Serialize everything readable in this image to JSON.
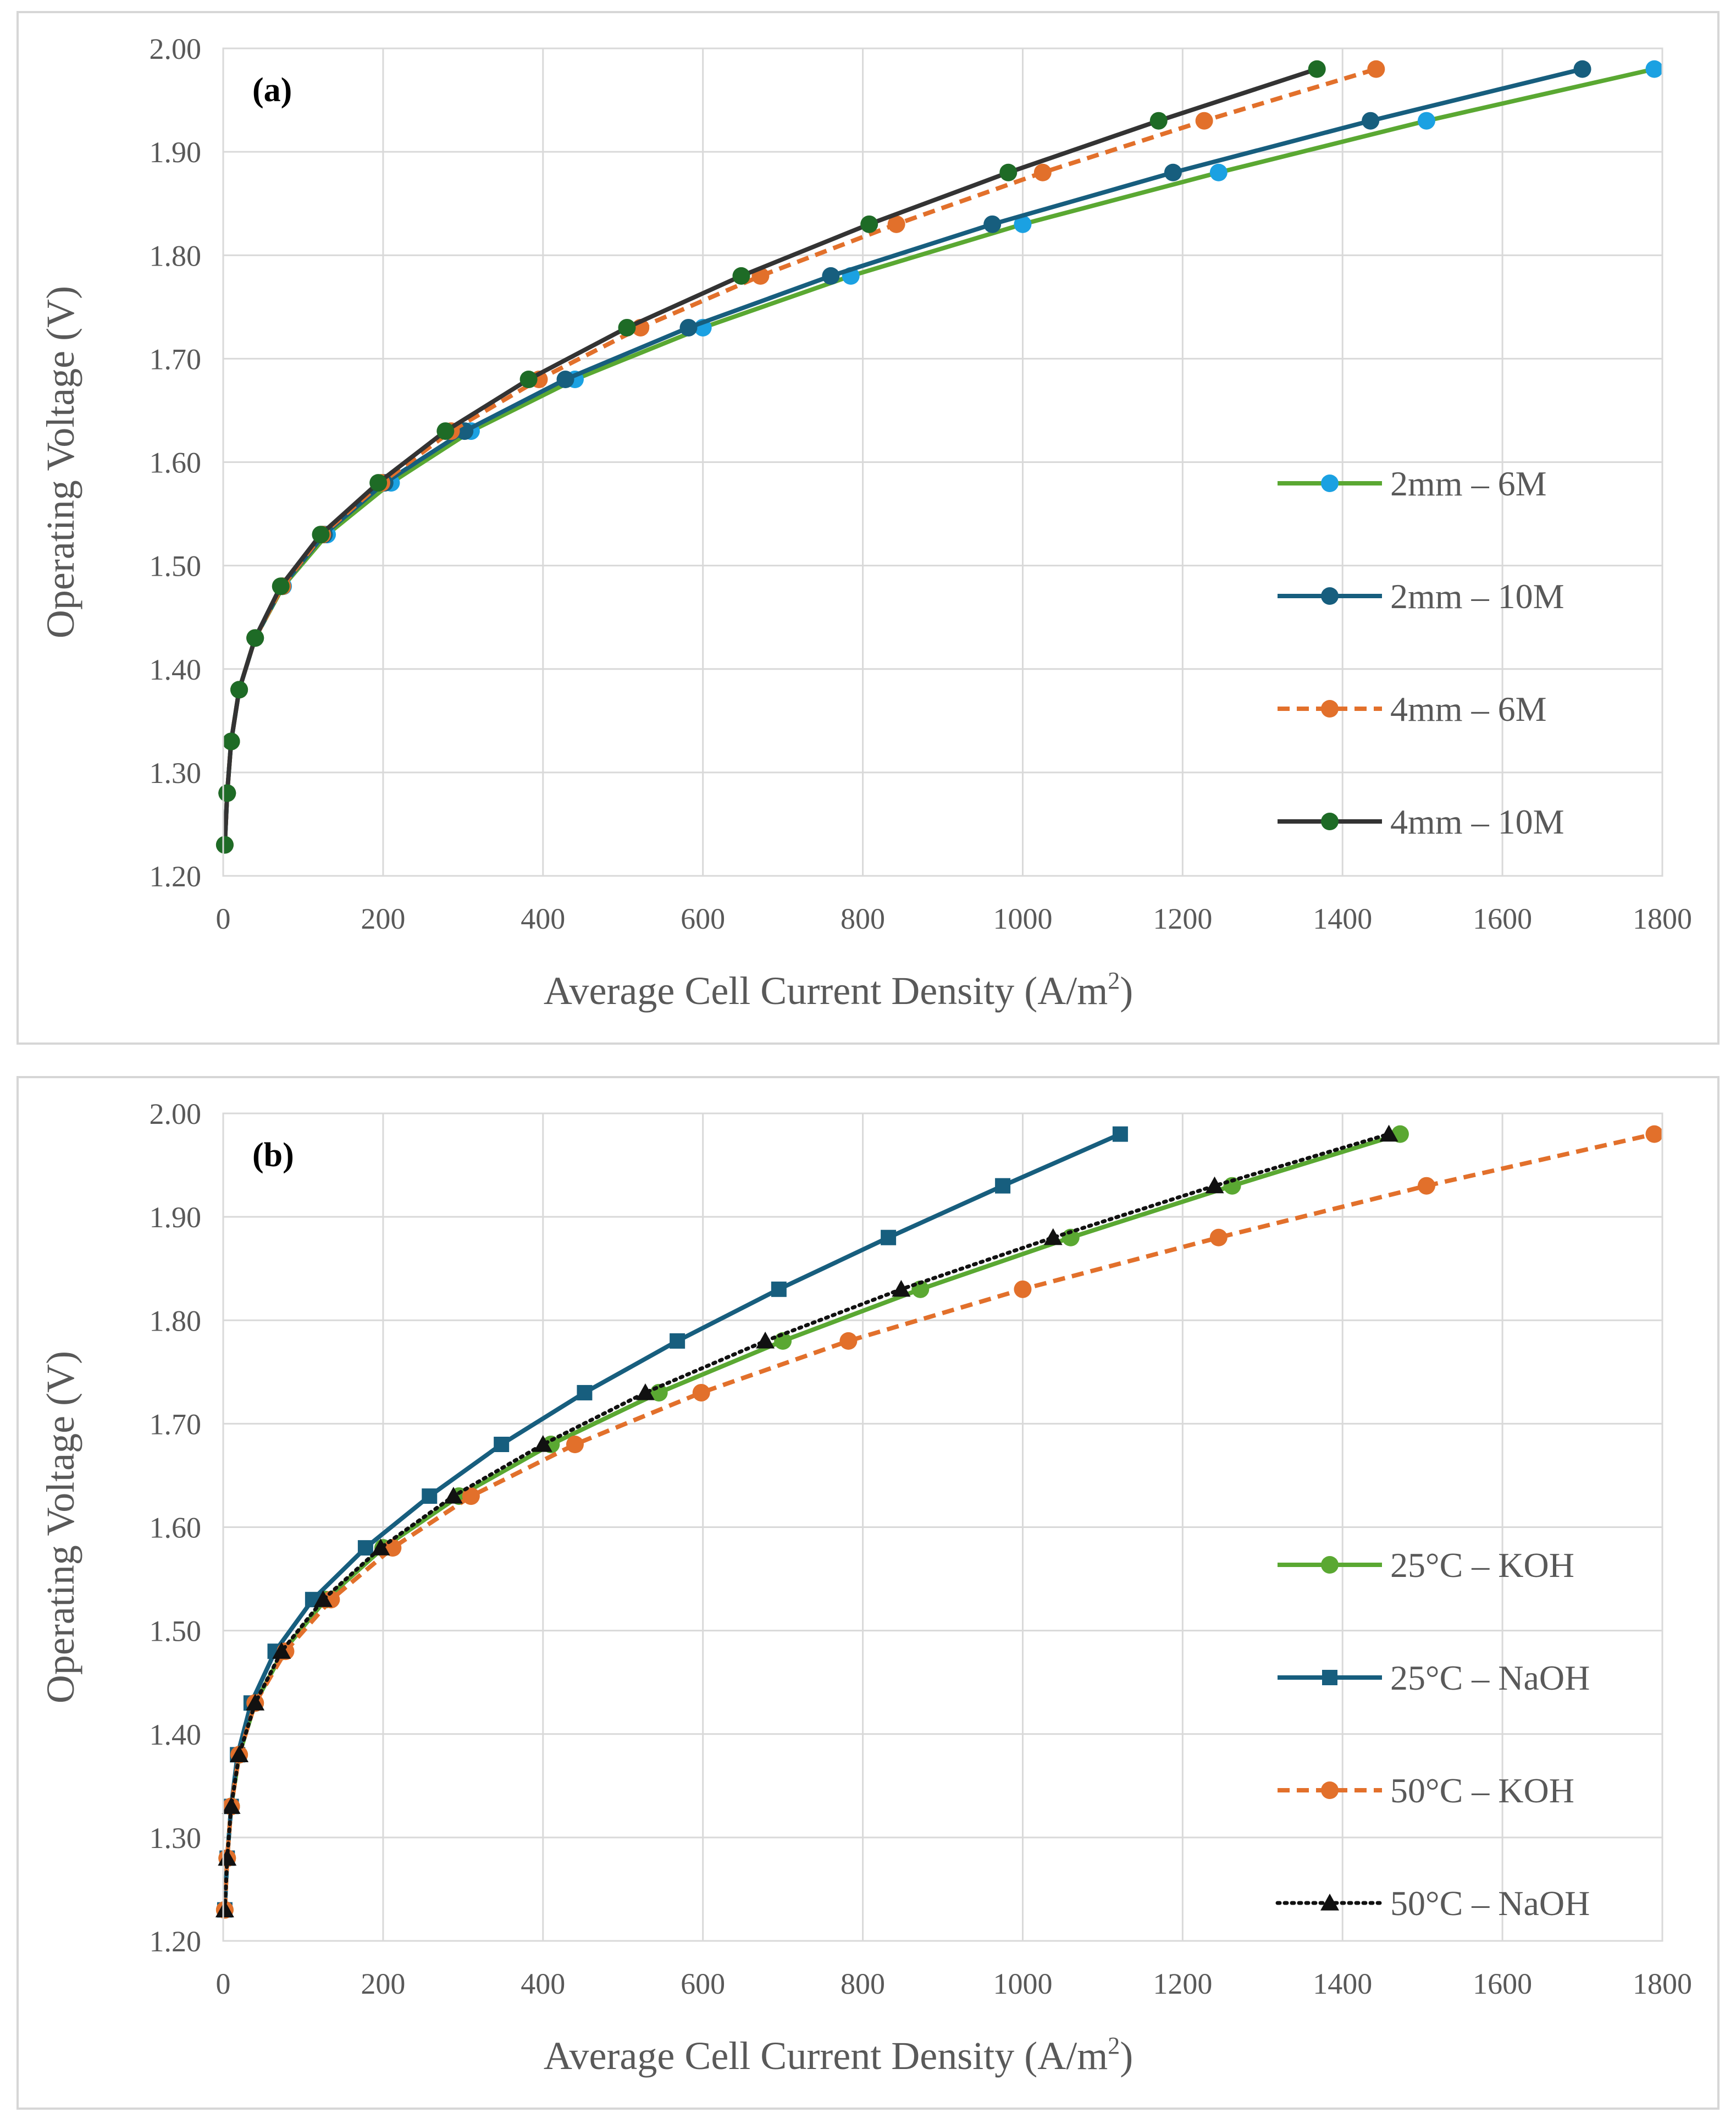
{
  "colors": {
    "light_blue": "#1ba1e2",
    "dark_blue": "#175e7e",
    "orange": "#e2702b",
    "dark_green": "#1e6b26",
    "green": "#5aa832",
    "dark_gray": "#333333",
    "black": "#111111"
  },
  "chart_data": [
    {
      "type": "line",
      "panel_label": "(a)",
      "xlabel": "Average Cell Current Density  (A/m",
      "xlabel_sup": "2",
      "xlabel_end": ")",
      "ylabel": "Operating Voltage (V)",
      "xlim": [
        0,
        1800
      ],
      "ylim": [
        1.2,
        2.0
      ],
      "x_ticks": [
        0,
        200,
        400,
        600,
        800,
        1000,
        1200,
        1400,
        1600,
        1800
      ],
      "y_ticks": [
        "1.20",
        "1.30",
        "1.40",
        "1.50",
        "1.60",
        "1.70",
        "1.80",
        "1.90",
        "2.00"
      ],
      "grid": true,
      "legend_position": "right",
      "series": [
        {
          "name": "2mm – 6M",
          "line_color": "#5aa832",
          "marker_color": "#1ba1e2",
          "marker": "circle",
          "dash": "solid",
          "x": [
            2,
            5,
            10,
            20,
            40,
            75,
            130,
            210,
            310,
            440,
            600,
            785,
            1000,
            1245,
            1505,
            1790
          ],
          "y": [
            1.23,
            1.28,
            1.33,
            1.38,
            1.43,
            1.48,
            1.53,
            1.58,
            1.63,
            1.68,
            1.73,
            1.78,
            1.83,
            1.88,
            1.93,
            1.98
          ]
        },
        {
          "name": "2mm – 10M",
          "line_color": "#175e7e",
          "marker_color": "#175e7e",
          "marker": "circle",
          "dash": "solid",
          "x": [
            2,
            5,
            10,
            20,
            40,
            74,
            126,
            202,
            302,
            428,
            582,
            760,
            962,
            1188,
            1435,
            1700
          ],
          "y": [
            1.23,
            1.28,
            1.33,
            1.38,
            1.43,
            1.48,
            1.53,
            1.58,
            1.63,
            1.68,
            1.73,
            1.78,
            1.83,
            1.88,
            1.93,
            1.98
          ]
        },
        {
          "name": "4mm – 6M",
          "line_color": "#e2702b",
          "marker_color": "#e2702b",
          "marker": "circle",
          "dash": "dashed",
          "x": [
            2,
            5,
            10,
            20,
            40,
            74,
            124,
            198,
            285,
            395,
            522,
            672,
            842,
            1025,
            1227,
            1442
          ],
          "y": [
            1.23,
            1.28,
            1.33,
            1.38,
            1.43,
            1.48,
            1.53,
            1.58,
            1.63,
            1.68,
            1.73,
            1.78,
            1.83,
            1.88,
            1.93,
            1.98
          ]
        },
        {
          "name": "4mm – 10M",
          "line_color": "#333333",
          "marker_color": "#1e6b26",
          "marker": "circle",
          "dash": "solid",
          "x": [
            2,
            5,
            10,
            20,
            40,
            72,
            122,
            194,
            278,
            382,
            505,
            648,
            808,
            982,
            1170,
            1368
          ],
          "y": [
            1.23,
            1.28,
            1.33,
            1.38,
            1.43,
            1.48,
            1.53,
            1.58,
            1.63,
            1.68,
            1.73,
            1.78,
            1.83,
            1.88,
            1.93,
            1.98
          ]
        }
      ]
    },
    {
      "type": "line",
      "panel_label": "(b)",
      "xlabel": "Average Cell Current Density  (A/m",
      "xlabel_sup": "2",
      "xlabel_end": ")",
      "ylabel": "Operating Voltage (V)",
      "xlim": [
        0,
        1800
      ],
      "ylim": [
        1.2,
        2.0
      ],
      "x_ticks": [
        0,
        200,
        400,
        600,
        800,
        1000,
        1200,
        1400,
        1600,
        1800
      ],
      "y_ticks": [
        "1.20",
        "1.30",
        "1.40",
        "1.50",
        "1.60",
        "1.70",
        "1.80",
        "1.90",
        "2.00"
      ],
      "grid": true,
      "legend_position": "right",
      "series": [
        {
          "name": "25°C – KOH",
          "line_color": "#5aa832",
          "marker_color": "#5aa832",
          "marker": "circle",
          "dash": "solid",
          "x": [
            2,
            5,
            10,
            20,
            40,
            75,
            128,
            200,
            295,
            410,
            545,
            700,
            872,
            1060,
            1262,
            1472
          ],
          "y": [
            1.23,
            1.28,
            1.33,
            1.38,
            1.43,
            1.48,
            1.53,
            1.58,
            1.63,
            1.68,
            1.73,
            1.78,
            1.83,
            1.88,
            1.93,
            1.98
          ]
        },
        {
          "name": "25°C – NaOH",
          "line_color": "#175e7e",
          "marker_color": "#175e7e",
          "marker": "square",
          "dash": "solid",
          "x": [
            2,
            5,
            10,
            18,
            35,
            65,
            112,
            178,
            258,
            348,
            452,
            568,
            695,
            832,
            975,
            1122
          ],
          "y": [
            1.23,
            1.28,
            1.33,
            1.38,
            1.43,
            1.48,
            1.53,
            1.58,
            1.63,
            1.68,
            1.73,
            1.78,
            1.83,
            1.88,
            1.93,
            1.98
          ]
        },
        {
          "name": "50°C – KOH",
          "line_color": "#e2702b",
          "marker_color": "#e2702b",
          "marker": "circle",
          "dash": "dashed",
          "x": [
            2,
            5,
            10,
            20,
            40,
            78,
            135,
            212,
            310,
            440,
            598,
            782,
            1000,
            1245,
            1505,
            1790
          ],
          "y": [
            1.23,
            1.28,
            1.33,
            1.38,
            1.43,
            1.48,
            1.53,
            1.58,
            1.63,
            1.68,
            1.73,
            1.78,
            1.83,
            1.88,
            1.93,
            1.98
          ]
        },
        {
          "name": "50°C – NaOH",
          "line_color": "#111111",
          "marker_color": "#111111",
          "marker": "triangle",
          "dash": "dotted",
          "x": [
            2,
            5,
            10,
            20,
            40,
            73,
            125,
            197,
            288,
            400,
            528,
            678,
            848,
            1038,
            1240,
            1458
          ],
          "y": [
            1.23,
            1.28,
            1.33,
            1.38,
            1.43,
            1.48,
            1.53,
            1.58,
            1.63,
            1.68,
            1.73,
            1.78,
            1.83,
            1.88,
            1.93,
            1.98
          ]
        }
      ]
    }
  ]
}
